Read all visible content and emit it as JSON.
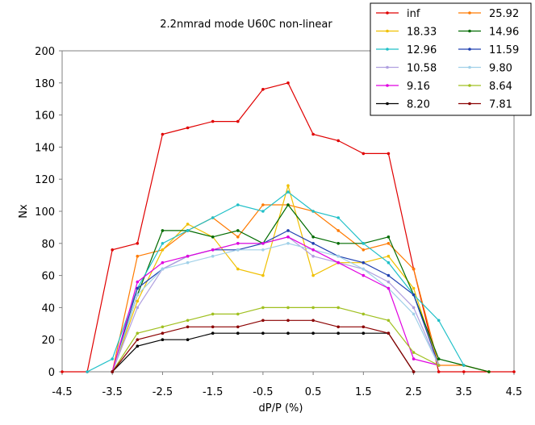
{
  "chart_data": {
    "type": "line",
    "title": "2.2nmrad mode U60C non-linear",
    "xlabel": "dP/P (%)",
    "ylabel": "Nx",
    "xlim": [
      -4.5,
      4.5
    ],
    "ylim": [
      0,
      200
    ],
    "xticks": [
      "-4.5",
      "-3.5",
      "-2.5",
      "-1.5",
      "-0.5",
      "0.5",
      "1.5",
      "2.5",
      "3.5",
      "4.5"
    ],
    "yticks": [
      "0",
      "20",
      "40",
      "60",
      "80",
      "100",
      "120",
      "140",
      "160",
      "180",
      "200"
    ],
    "grid": false,
    "legend_position": "top-right",
    "x": [
      -4.5,
      -4.0,
      -3.5,
      -3.0,
      -2.5,
      -2.0,
      -1.5,
      -1.0,
      -0.5,
      0.0,
      0.5,
      1.0,
      1.5,
      2.0,
      2.5,
      3.0,
      3.5,
      4.0,
      4.5
    ],
    "series": [
      {
        "name": "inf",
        "color": "#e00000",
        "values": [
          0,
          0,
          76,
          80,
          148,
          152,
          156,
          156,
          176,
          180,
          148,
          144,
          136,
          136,
          64,
          0,
          0,
          0,
          0
        ]
      },
      {
        "name": "25.92",
        "color": "#ff7a00",
        "values": [
          null,
          null,
          0,
          72,
          76,
          88,
          96,
          84,
          104,
          104,
          100,
          88,
          76,
          80,
          64,
          4,
          4,
          0,
          null
        ]
      },
      {
        "name": "18.33",
        "color": "#f0c000",
        "values": [
          null,
          null,
          0,
          44,
          76,
          92,
          84,
          64,
          60,
          116,
          60,
          68,
          68,
          72,
          52,
          4,
          null,
          null,
          null
        ]
      },
      {
        "name": "14.96",
        "color": "#006b00",
        "values": [
          null,
          null,
          0,
          48,
          88,
          88,
          84,
          88,
          80,
          104,
          84,
          80,
          80,
          84,
          48,
          8,
          4,
          0,
          null
        ]
      },
      {
        "name": "12.96",
        "color": "#20c0c8",
        "values": [
          null,
          0,
          8,
          52,
          80,
          88,
          96,
          104,
          100,
          112,
          100,
          96,
          80,
          68,
          48,
          32,
          4,
          null,
          null
        ]
      },
      {
        "name": "11.59",
        "color": "#2040b0",
        "values": [
          null,
          null,
          0,
          52,
          64,
          72,
          76,
          76,
          80,
          88,
          80,
          72,
          68,
          60,
          48,
          4,
          null,
          null,
          null
        ]
      },
      {
        "name": "10.58",
        "color": "#b0a0e0",
        "values": [
          null,
          null,
          0,
          40,
          64,
          72,
          76,
          80,
          80,
          84,
          72,
          68,
          64,
          56,
          40,
          4,
          null,
          null,
          null
        ]
      },
      {
        "name": "9.80",
        "color": "#a0d0e8",
        "values": [
          null,
          null,
          0,
          48,
          64,
          68,
          72,
          76,
          76,
          80,
          76,
          72,
          64,
          52,
          36,
          4,
          null,
          null,
          null
        ]
      },
      {
        "name": "9.16",
        "color": "#e000e0",
        "values": [
          null,
          null,
          0,
          56,
          68,
          72,
          76,
          80,
          80,
          84,
          76,
          68,
          60,
          52,
          8,
          4,
          null,
          null,
          null
        ]
      },
      {
        "name": "8.64",
        "color": "#a0c020",
        "values": [
          null,
          null,
          0,
          24,
          28,
          32,
          36,
          36,
          40,
          40,
          40,
          40,
          36,
          32,
          12,
          4,
          null,
          null,
          null
        ]
      },
      {
        "name": "8.20",
        "color": "#000000",
        "values": [
          null,
          null,
          0,
          16,
          20,
          20,
          24,
          24,
          24,
          24,
          24,
          24,
          24,
          24,
          0,
          null,
          null,
          null,
          null
        ]
      },
      {
        "name": "7.81",
        "color": "#8b0000",
        "values": [
          null,
          null,
          0,
          20,
          24,
          28,
          28,
          28,
          32,
          32,
          32,
          28,
          28,
          24,
          0,
          null,
          null,
          null,
          null
        ]
      }
    ]
  }
}
